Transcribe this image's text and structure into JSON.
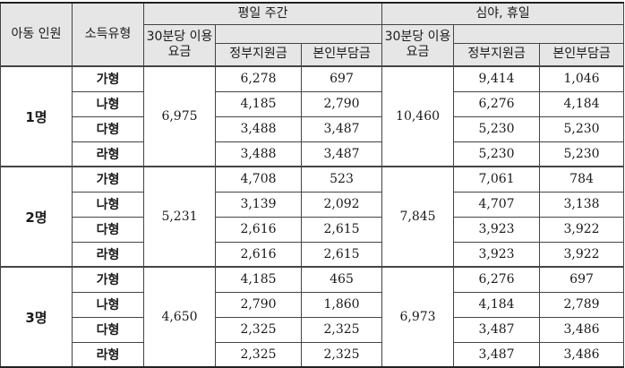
{
  "header": {
    "children_count": "아동 인원",
    "income_type": "소득유형",
    "weekday": "평일 주간",
    "night_holiday": "심야, 휴일",
    "fee_per_30min": "30분당 이용요금",
    "gov_support": "정부지원금",
    "self_pay": "본인부담금"
  },
  "groups": [
    {
      "count": "1명",
      "weekday_fee": "6,975",
      "night_fee": "10,460",
      "rows": [
        {
          "type": "가형",
          "wd_gov": "6,278",
          "wd_self": "697",
          "nh_gov": "9,414",
          "nh_self": "1,046"
        },
        {
          "type": "나형",
          "wd_gov": "4,185",
          "wd_self": "2,790",
          "nh_gov": "6,276",
          "nh_self": "4,184"
        },
        {
          "type": "다형",
          "wd_gov": "3,488",
          "wd_self": "3,487",
          "nh_gov": "5,230",
          "nh_self": "5,230"
        },
        {
          "type": "라형",
          "wd_gov": "3,488",
          "wd_self": "3,487",
          "nh_gov": "5,230",
          "nh_self": "5,230"
        }
      ]
    },
    {
      "count": "2명",
      "weekday_fee": "5,231",
      "night_fee": "7,845",
      "rows": [
        {
          "type": "가형",
          "wd_gov": "4,708",
          "wd_self": "523",
          "nh_gov": "7,061",
          "nh_self": "784"
        },
        {
          "type": "나형",
          "wd_gov": "3,139",
          "wd_self": "2,092",
          "nh_gov": "4,707",
          "nh_self": "3,138"
        },
        {
          "type": "다형",
          "wd_gov": "2,616",
          "wd_self": "2,615",
          "nh_gov": "3,923",
          "nh_self": "3,922"
        },
        {
          "type": "라형",
          "wd_gov": "2,616",
          "wd_self": "2,615",
          "nh_gov": "3,923",
          "nh_self": "3,922"
        }
      ]
    },
    {
      "count": "3명",
      "weekday_fee": "4,650",
      "night_fee": "6,973",
      "rows": [
        {
          "type": "가형",
          "wd_gov": "4,185",
          "wd_self": "465",
          "nh_gov": "6,276",
          "nh_self": "697"
        },
        {
          "type": "나형",
          "wd_gov": "2,790",
          "wd_self": "1,860",
          "nh_gov": "4,184",
          "nh_self": "2,789"
        },
        {
          "type": "다형",
          "wd_gov": "2,325",
          "wd_self": "2,325",
          "nh_gov": "3,487",
          "nh_self": "3,486"
        },
        {
          "type": "라형",
          "wd_gov": "2,325",
          "wd_self": "2,325",
          "nh_gov": "3,487",
          "nh_self": "3,486"
        }
      ]
    }
  ]
}
